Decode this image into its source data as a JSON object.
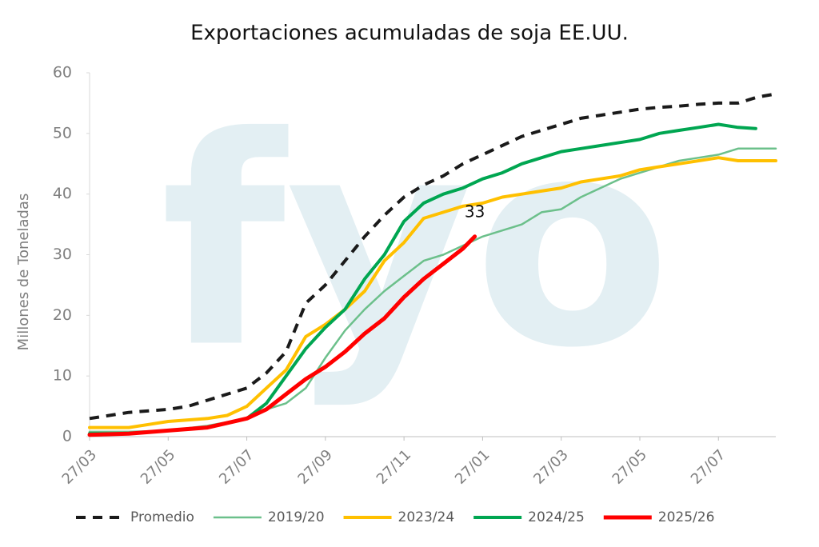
{
  "chart_data": {
    "type": "line",
    "title": "Exportaciones acumuladas de soja EE.UU.",
    "y_label": "Millones de Toneladas",
    "watermark": "fyo",
    "xlim": [
      0,
      17.46
    ],
    "ylim": [
      0,
      60
    ],
    "xticks": [
      {
        "value": 0,
        "label": "27/03"
      },
      {
        "value": 2,
        "label": "27/05"
      },
      {
        "value": 4,
        "label": "27/07"
      },
      {
        "value": 6,
        "label": "27/09"
      },
      {
        "value": 8,
        "label": "27/11"
      },
      {
        "value": 10,
        "label": "27/01"
      },
      {
        "value": 12,
        "label": "27/03"
      },
      {
        "value": 14,
        "label": "27/05"
      },
      {
        "value": 16,
        "label": "27/07"
      }
    ],
    "yticks": [
      0,
      10,
      20,
      30,
      40,
      50,
      60
    ],
    "grid": false,
    "legend": "bottom",
    "series": [
      {
        "name": "Promedio",
        "color": "#1a1a1a",
        "dashed": true,
        "x": [
          0,
          1,
          2,
          2.5,
          3,
          3.5,
          4,
          4.5,
          5,
          5.5,
          6,
          6.5,
          7,
          7.5,
          8,
          8.5,
          9,
          9.5,
          10,
          10.5,
          11,
          11.5,
          12,
          12.5,
          13,
          13.5,
          14,
          14.5,
          15,
          15.5,
          16,
          16.5,
          17,
          17.46
        ],
        "values": [
          3,
          4,
          4.5,
          5,
          6,
          7,
          8,
          10.5,
          14,
          22,
          25,
          29,
          33,
          36.5,
          39.5,
          41.5,
          43,
          45,
          46.5,
          48,
          49.5,
          50.5,
          51.5,
          52.5,
          53,
          53.5,
          54,
          54.3,
          54.5,
          54.8,
          55,
          55,
          56,
          56.5
        ]
      },
      {
        "name": "2019/20",
        "color": "#6cc08b",
        "x": [
          0,
          1,
          2,
          3,
          4,
          4.5,
          5,
          5.5,
          6,
          6.5,
          7,
          7.5,
          8,
          8.5,
          9,
          9.5,
          10,
          10.5,
          11,
          11.5,
          12,
          12.5,
          13,
          13.5,
          14,
          14.5,
          15,
          15.5,
          16,
          16.5,
          17.46
        ],
        "values": [
          0.8,
          0.8,
          1,
          1.8,
          3,
          4.5,
          5.5,
          8,
          13,
          17.5,
          21,
          24,
          26.5,
          29,
          30,
          31.5,
          33,
          34,
          35,
          37,
          37.5,
          39.5,
          41,
          42.5,
          43.5,
          44.5,
          45.5,
          46,
          46.5,
          47.5,
          47.5
        ]
      },
      {
        "name": "2023/24",
        "color": "#ffc000",
        "x": [
          0,
          1,
          1.5,
          2,
          3,
          3.5,
          4,
          4.5,
          5,
          5.5,
          6,
          6.5,
          7,
          7.5,
          8,
          8.5,
          9,
          9.5,
          10,
          10.5,
          11,
          11.5,
          12,
          12.5,
          13,
          13.5,
          14,
          14.5,
          15,
          15.5,
          16,
          16.5,
          17.46
        ],
        "values": [
          1.5,
          1.5,
          2,
          2.5,
          3,
          3.5,
          5,
          8,
          11,
          16.5,
          18.5,
          21,
          24,
          29,
          32,
          36,
          37,
          38,
          38.5,
          39.5,
          40,
          40.5,
          41,
          42,
          42.5,
          43,
          44,
          44.5,
          45,
          45.5,
          46,
          45.5,
          45.5
        ]
      },
      {
        "name": "2024/25",
        "color": "#00a651",
        "x": [
          0,
          1,
          2,
          3,
          4,
          4.5,
          5,
          5.5,
          6,
          6.5,
          7,
          7.5,
          8,
          8.5,
          9,
          9.5,
          10,
          10.5,
          11,
          11.5,
          12,
          12.5,
          13,
          13.5,
          14,
          14.5,
          15,
          15.5,
          16,
          16.5,
          16.95
        ],
        "values": [
          0.5,
          0.5,
          1,
          1.5,
          3,
          5.5,
          10,
          14.5,
          18,
          21,
          26,
          30,
          35.5,
          38.5,
          40,
          41,
          42.5,
          43.5,
          45,
          46,
          47,
          47.5,
          48,
          48.5,
          49,
          50,
          50.5,
          51,
          51.5,
          51,
          50.8
        ]
      },
      {
        "name": "2025/26",
        "color": "#ff0000",
        "x": [
          0,
          1,
          2,
          3,
          4,
          4.5,
          5,
          5.5,
          6,
          6.5,
          7,
          7.5,
          8,
          8.5,
          9,
          9.5,
          9.8
        ],
        "values": [
          0.3,
          0.5,
          1,
          1.5,
          3,
          4.5,
          7,
          9.5,
          11.5,
          14,
          17,
          19.5,
          23,
          26,
          28.5,
          31,
          33
        ]
      }
    ]
  }
}
